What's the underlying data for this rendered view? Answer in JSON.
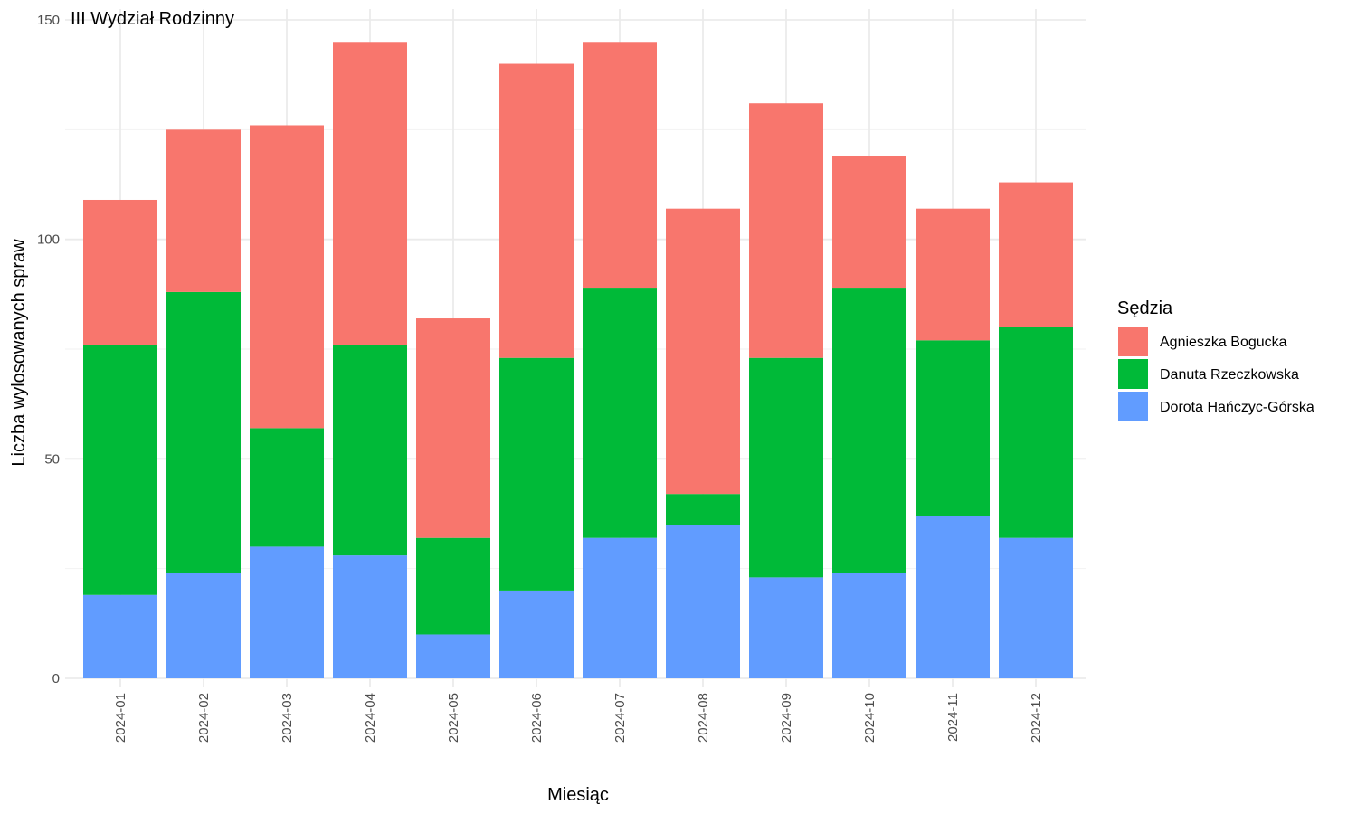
{
  "chart_data": {
    "type": "bar",
    "stacked": true,
    "title": "",
    "annotation": "III Wydział Rodzinny",
    "xlabel": "Miesiąc",
    "ylabel": "Liczba wylosowanych spraw",
    "ylim": [
      0,
      150
    ],
    "yticks": [
      0,
      50,
      100,
      150
    ],
    "grid": true,
    "legend_title": "Sędzia",
    "legend_position": "right",
    "categories": [
      "2024-01",
      "2024-02",
      "2024-03",
      "2024-04",
      "2024-05",
      "2024-06",
      "2024-07",
      "2024-08",
      "2024-09",
      "2024-10",
      "2024-11",
      "2024-12"
    ],
    "series": [
      {
        "name": "Dorota Hańczyc-Górska",
        "color": "#619CFF",
        "values": [
          19,
          24,
          30,
          28,
          10,
          20,
          32,
          35,
          23,
          24,
          37,
          32
        ]
      },
      {
        "name": "Danuta Rzeczkowska",
        "color": "#00BA38",
        "values": [
          57,
          64,
          27,
          48,
          22,
          53,
          57,
          7,
          50,
          65,
          40,
          48
        ]
      },
      {
        "name": "Agnieszka Bogucka",
        "color": "#F8766D",
        "values": [
          33,
          37,
          69,
          69,
          50,
          67,
          56,
          65,
          58,
          30,
          30,
          33
        ]
      }
    ],
    "legend_order": [
      "Agnieszka Bogucka",
      "Danuta Rzeczkowska",
      "Dorota Hańczyc-Górska"
    ]
  }
}
